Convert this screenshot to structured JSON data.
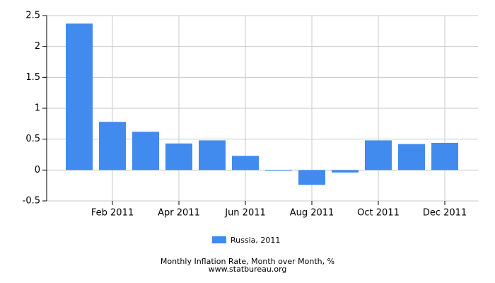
{
  "chart_data": {
    "type": "bar",
    "title": "Monthly Inflation Rate, Month over Month, %",
    "subtitle": "www.statbureau.org",
    "categories": [
      null,
      "Feb 2011",
      null,
      "Apr 2011",
      null,
      "Jun 2011",
      null,
      "Aug 2011",
      null,
      "Oct 2011",
      null,
      "Dec 2011"
    ],
    "series": [
      {
        "name": "Russia, 2011",
        "color": "#428bee",
        "values": [
          2.37,
          0.78,
          0.62,
          0.43,
          0.48,
          0.23,
          -0.01,
          -0.24,
          -0.04,
          0.48,
          0.42,
          0.44
        ]
      }
    ],
    "ylim": [
      -0.5,
      2.5
    ],
    "yticks": [
      2.5,
      2,
      1.5,
      1,
      0.5,
      0,
      -0.5
    ],
    "grid": true,
    "legend": "bottom"
  }
}
